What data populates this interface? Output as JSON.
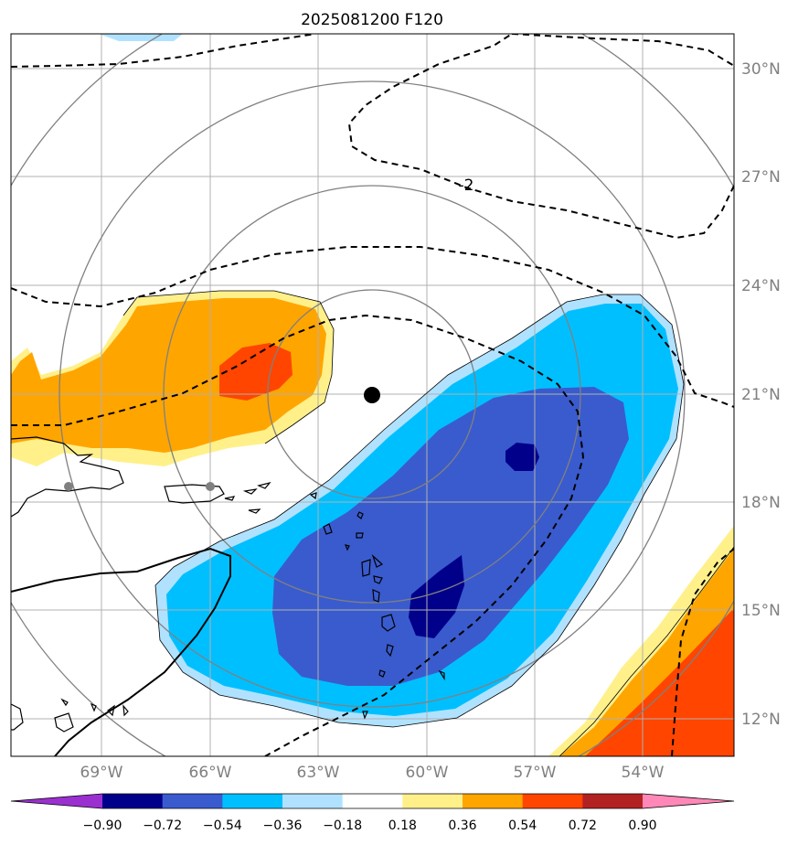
{
  "title": "2025081200 F120",
  "lon_labels": [
    "69°W",
    "66°W",
    "63°W",
    "60°W",
    "57°W",
    "54°W"
  ],
  "lat_labels": [
    "30°N",
    "27°N",
    "24°N",
    "21°N",
    "18°N",
    "15°N",
    "12°N"
  ],
  "contour_label": "-2",
  "colorbar": {
    "tick_labels": [
      "−0.90",
      "−0.72",
      "−0.54",
      "−0.36",
      "−0.18",
      "0.18",
      "0.36",
      "0.54",
      "0.72",
      "0.90"
    ],
    "colors": [
      "#9b30d0",
      "#00008b",
      "#3a5bcd",
      "#00bfff",
      "#b0e2ff",
      "#ffffff",
      "#fff08a",
      "#ffa500",
      "#ff4500",
      "#b22222",
      "#ff88b8"
    ]
  },
  "chart_data": {
    "type": "heatmap",
    "title": "2025081200 F120",
    "xlim": [
      "71°W",
      "51°W"
    ],
    "ylim": [
      "11°N",
      "31°N"
    ],
    "grid": true,
    "storm_center": {
      "lon": -61.5,
      "lat": 21.0
    },
    "colorbar_levels": [
      -0.9,
      -0.72,
      -0.54,
      -0.36,
      -0.18,
      0.18,
      0.36,
      0.54,
      0.72,
      0.9
    ]
  }
}
